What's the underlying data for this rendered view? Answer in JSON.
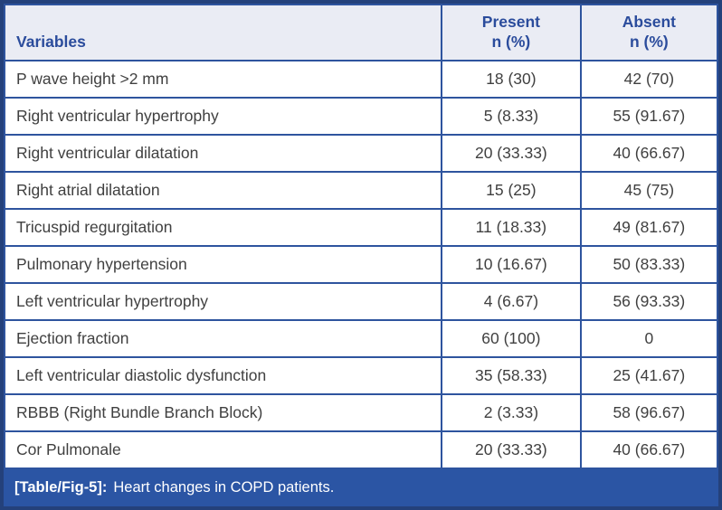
{
  "table": {
    "columns": [
      {
        "label": "Variables",
        "sub": ""
      },
      {
        "label": "Present",
        "sub": "n (%)"
      },
      {
        "label": "Absent",
        "sub": "n (%)"
      }
    ],
    "rows": [
      [
        "P wave height >2 mm",
        "18 (30)",
        "42 (70)"
      ],
      [
        "Right ventricular hypertrophy",
        "5 (8.33)",
        "55 (91.67)"
      ],
      [
        "Right ventricular dilatation",
        "20 (33.33)",
        "40 (66.67)"
      ],
      [
        "Right atrial dilatation",
        "15 (25)",
        "45 (75)"
      ],
      [
        "Tricuspid regurgitation",
        "11 (18.33)",
        "49 (81.67)"
      ],
      [
        "Pulmonary hypertension",
        "10 (16.67)",
        "50 (83.33)"
      ],
      [
        "Left ventricular hypertrophy",
        "4 (6.67)",
        "56 (93.33)"
      ],
      [
        "Ejection fraction",
        "60 (100)",
        "0"
      ],
      [
        "Left ventricular diastolic dysfunction",
        "35 (58.33)",
        "25 (41.67)"
      ],
      [
        "RBBB (Right Bundle Branch Block)",
        "2 (3.33)",
        "58 (96.67)"
      ],
      [
        "Cor Pulmonale",
        "20 (33.33)",
        "40 (66.67)"
      ]
    ],
    "caption_label": "[Table/Fig-5]:",
    "caption_text": "Heart changes in COPD patients."
  },
  "colors": {
    "outer_border": "#24417b",
    "inner_rule": "#2e549e",
    "header_bg": "#eaecf4",
    "header_text": "#2b4c9c",
    "body_text": "#404040",
    "caption_bg": "#2b55a4",
    "caption_text": "#ffffff"
  },
  "chart_data": {
    "type": "table",
    "title": "[Table/Fig-5]: Heart changes in COPD patients.",
    "columns": [
      "Variables",
      "Present n (%)",
      "Absent n (%)"
    ],
    "rows": [
      [
        "P wave height >2 mm",
        "18 (30)",
        "42 (70)"
      ],
      [
        "Right ventricular hypertrophy",
        "5 (8.33)",
        "55 (91.67)"
      ],
      [
        "Right ventricular dilatation",
        "20 (33.33)",
        "40 (66.67)"
      ],
      [
        "Right atrial dilatation",
        "15 (25)",
        "45 (75)"
      ],
      [
        "Tricuspid regurgitation",
        "11 (18.33)",
        "49 (81.67)"
      ],
      [
        "Pulmonary hypertension",
        "10 (16.67)",
        "50 (83.33)"
      ],
      [
        "Left ventricular hypertrophy",
        "4 (6.67)",
        "56 (93.33)"
      ],
      [
        "Ejection fraction",
        "60 (100)",
        "0"
      ],
      [
        "Left ventricular diastolic dysfunction",
        "35 (58.33)",
        "25 (41.67)"
      ],
      [
        "RBBB (Right Bundle Branch Block)",
        "2 (3.33)",
        "58 (96.67)"
      ],
      [
        "Cor Pulmonale",
        "20 (33.33)",
        "40 (66.67)"
      ]
    ]
  }
}
